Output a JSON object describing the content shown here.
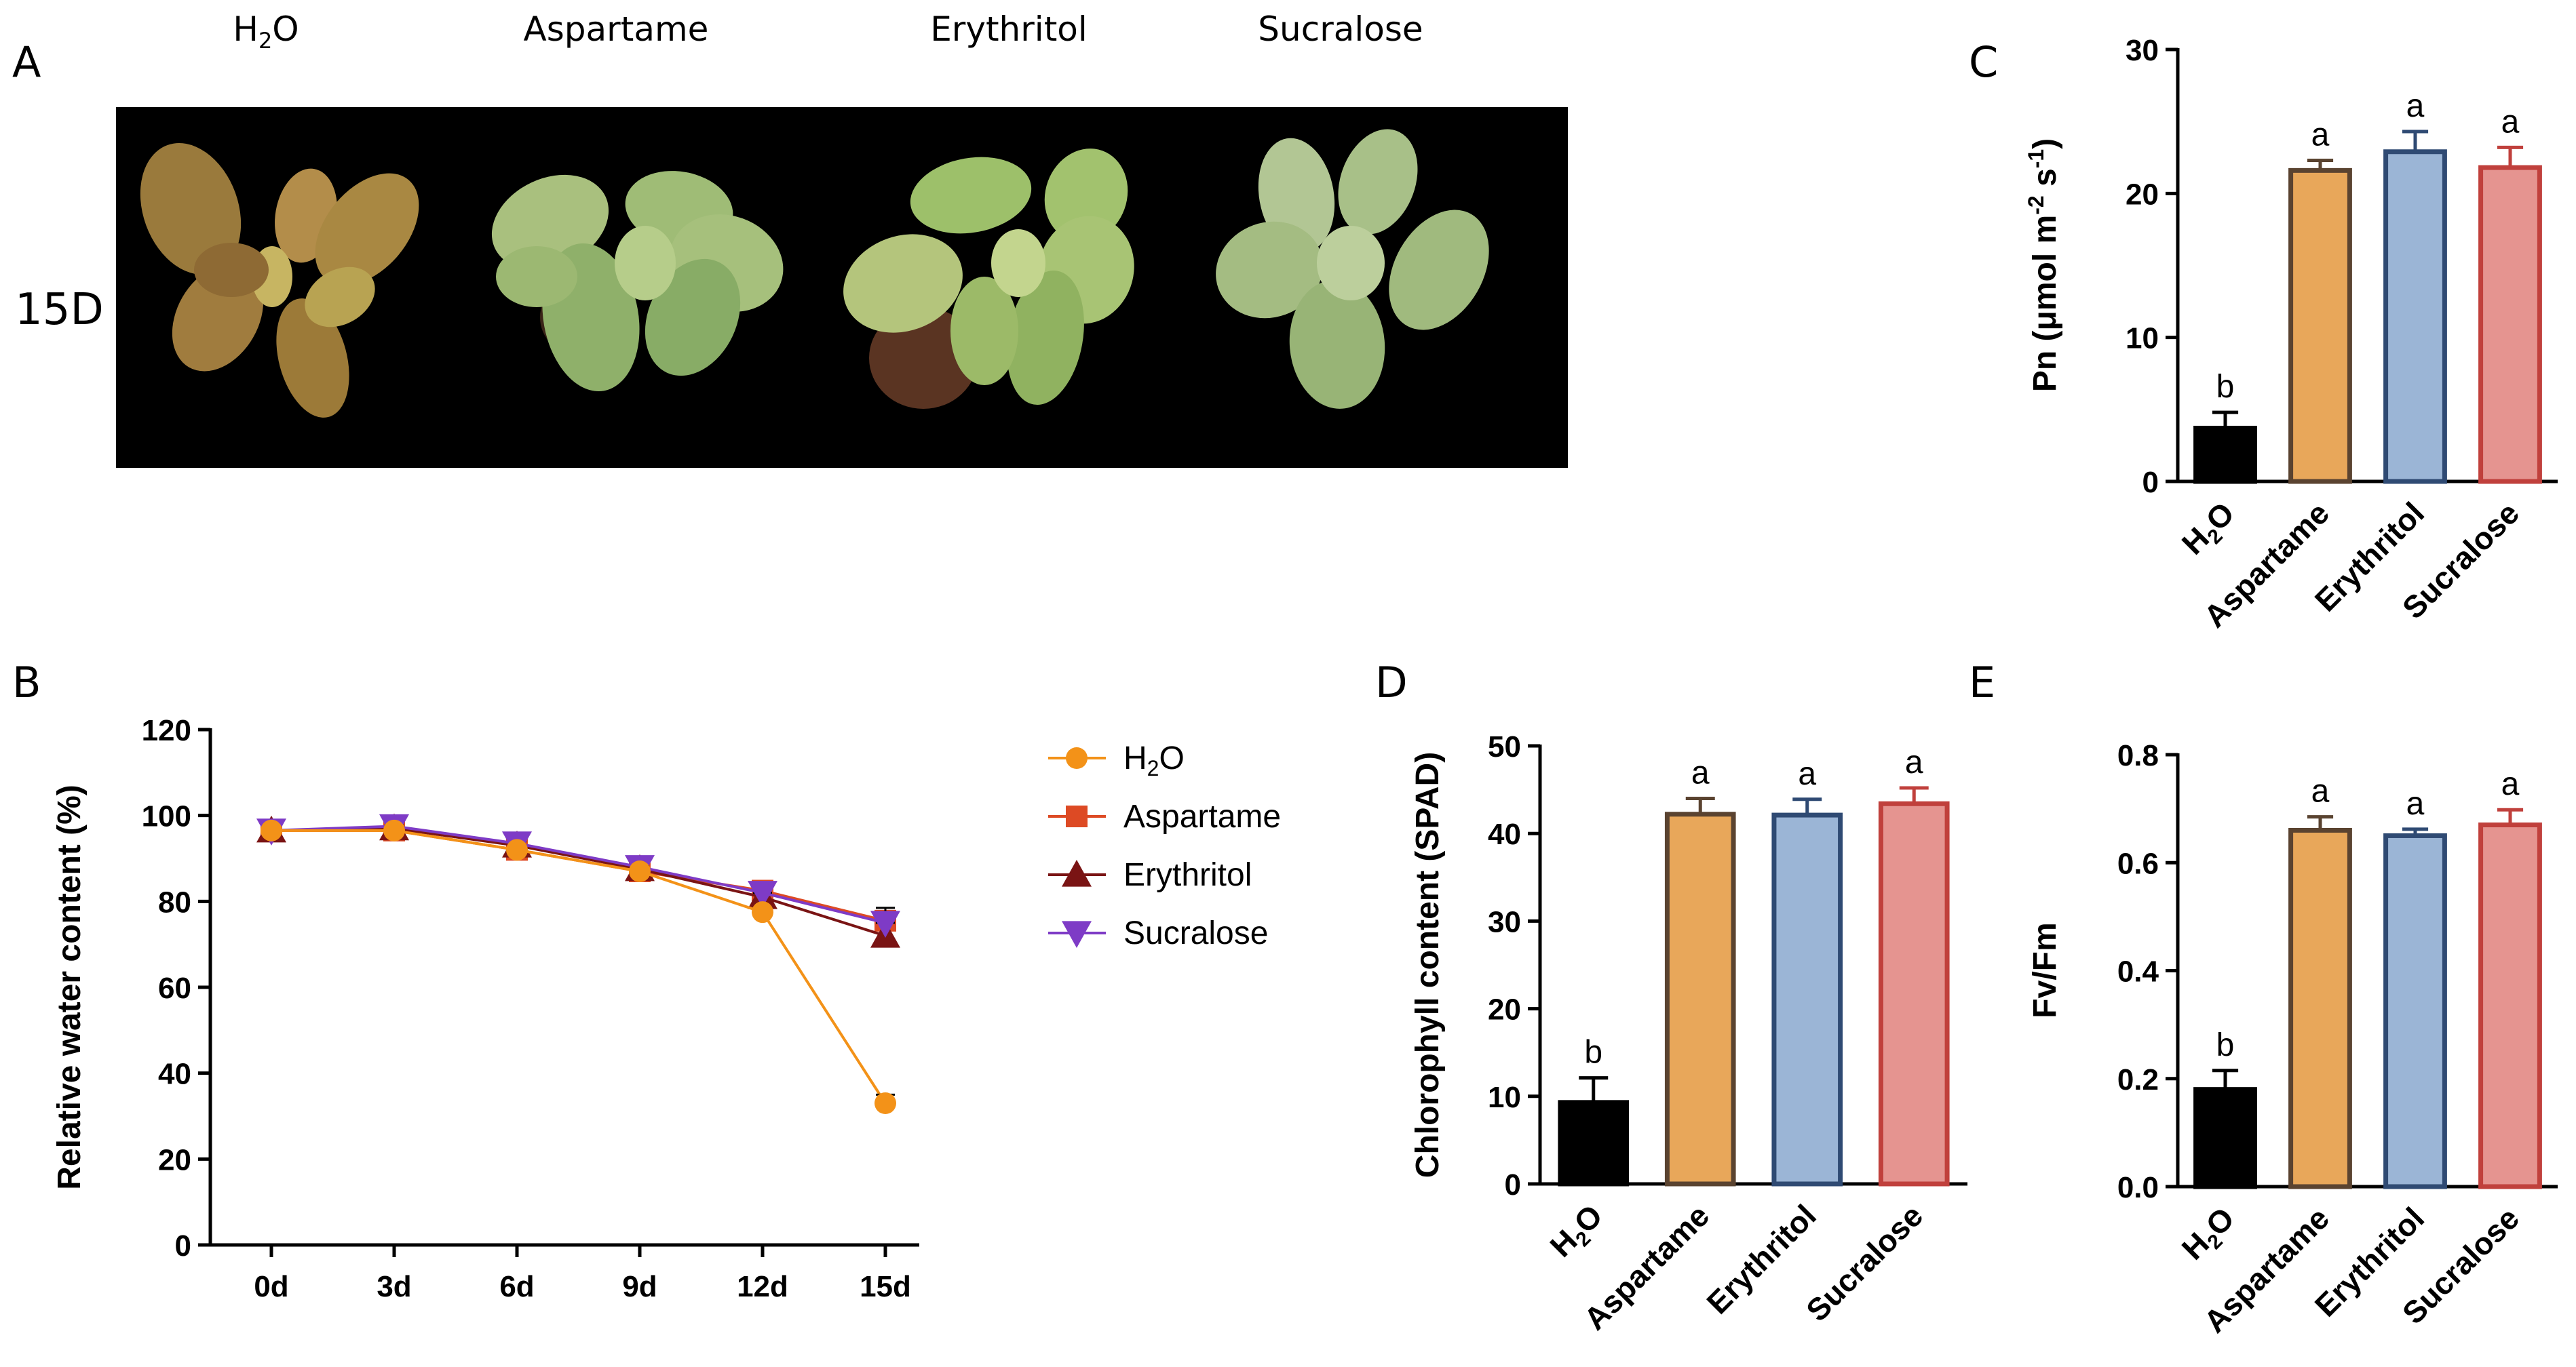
{
  "panels": {
    "a": "A",
    "b": "B",
    "c": "C",
    "d": "D",
    "e": "E"
  },
  "photo": {
    "treatments": [
      "Aspartame",
      "Erythritol",
      "Sucralose"
    ],
    "h2o": {
      "main": "H",
      "sub": "2",
      "tail": "O"
    },
    "day": "15D"
  },
  "colors": {
    "h2o": "#000000",
    "aspartame": "#E8A75A",
    "erythritol": "#9BB5D6",
    "sucralose": "#E59490",
    "h2o_line": "#F39218",
    "aspartame_line": "#DD4A24",
    "erythritol_line": "#7A1414",
    "sucralose_line": "#7E3BC6"
  },
  "chart_data": [
    {
      "id": "B",
      "type": "line",
      "ylabel": "Relative water content (%)",
      "xlabel": "",
      "categories": [
        "0d",
        "3d",
        "6d",
        "9d",
        "12d",
        "15d"
      ],
      "ylim": [
        0,
        120
      ],
      "yticks": [
        0,
        20,
        40,
        60,
        80,
        100,
        120
      ],
      "series": [
        {
          "name": "Aspartame",
          "marker": "square",
          "values": [
            96.5,
            96.5,
            92,
            87,
            82.5,
            75.5
          ],
          "errors": [
            1,
            1,
            1,
            1,
            1,
            2
          ]
        },
        {
          "name": "Erythritol",
          "marker": "triangle-up",
          "values": [
            96.5,
            97,
            93,
            87.5,
            81,
            72
          ],
          "errors": [
            1,
            1,
            1,
            1,
            1,
            3
          ]
        },
        {
          "name": "Sucralose",
          "marker": "triangle-down",
          "values": [
            96.5,
            97.5,
            93.5,
            88,
            82,
            75
          ],
          "errors": [
            1,
            1,
            1.5,
            1.5,
            1,
            3.5
          ]
        },
        {
          "name": "H2O",
          "marker": "circle",
          "values": [
            96.5,
            96.5,
            92,
            87,
            77.5,
            33
          ],
          "errors": [
            1,
            1,
            1,
            1,
            1,
            2
          ]
        }
      ],
      "legend": [
        {
          "main": "H",
          "sub": "2",
          "tail": "O"
        },
        {
          "main": "Aspartame"
        },
        {
          "main": "Erythritol"
        },
        {
          "main": "Sucralose"
        }
      ]
    },
    {
      "id": "C",
      "type": "bar",
      "ylabel": {
        "main": "Pn (μmol m",
        "sup1": "-2",
        "mid": " s",
        "sup2": "-1",
        "tail": ")"
      },
      "categories": [
        "H2O",
        "Aspartame",
        "Erythritol",
        "Sucralose"
      ],
      "values": [
        3.7,
        21.6,
        22.9,
        21.8
      ],
      "errors": [
        1.1,
        0.7,
        1.4,
        1.4
      ],
      "letters": [
        "b",
        "a",
        "a",
        "a"
      ],
      "ylim": [
        0,
        30
      ],
      "yticks": [
        0,
        10,
        20,
        30
      ]
    },
    {
      "id": "D",
      "type": "bar",
      "ylabel": "Chlorophyll content (SPAD)",
      "categories": [
        "H2O",
        "Aspartame",
        "Erythritol",
        "Sucralose"
      ],
      "values": [
        9.3,
        42.2,
        42.1,
        43.4
      ],
      "errors": [
        2.8,
        1.8,
        1.8,
        1.8
      ],
      "letters": [
        "b",
        "a",
        "a",
        "a"
      ],
      "ylim": [
        0,
        50
      ],
      "yticks": [
        0,
        10,
        20,
        30,
        40,
        50
      ]
    },
    {
      "id": "E",
      "type": "bar",
      "ylabel": "Fv/Fm",
      "categories": [
        "H2O",
        "Aspartame",
        "Erythritol",
        "Sucralose"
      ],
      "values": [
        0.18,
        0.66,
        0.65,
        0.67
      ],
      "errors": [
        0.035,
        0.025,
        0.012,
        0.028
      ],
      "letters": [
        "b",
        "a",
        "a",
        "a"
      ],
      "ylim": [
        0,
        0.8
      ],
      "yticks": [
        "0.0",
        "0.2",
        "0.4",
        "0.6",
        "0.8"
      ]
    }
  ]
}
